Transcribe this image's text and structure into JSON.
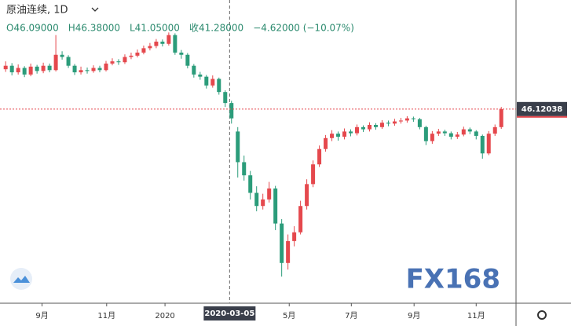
{
  "chart_data": {
    "type": "candlestick",
    "title": "原油连续, 1D",
    "ohlc_header": [
      "O46.09000",
      "H46.38000",
      "L41.05000",
      "收41.28000",
      "−4.62000 (−10.07%)"
    ],
    "open": [
      55.2,
      56,
      54.5,
      55.5,
      54,
      55.8,
      54.8,
      56,
      55,
      58.5,
      58,
      56,
      54.5,
      55,
      54.8,
      55.5,
      55,
      56.5,
      57,
      56.8,
      58,
      58.3,
      59,
      60,
      60.5,
      61.5,
      61,
      63,
      59,
      58.5,
      56,
      54,
      53.5,
      51.5,
      53,
      50,
      47.5,
      41,
      34,
      31,
      27,
      24,
      25.5,
      28,
      20,
      11,
      16,
      18,
      24,
      29,
      33.5,
      37,
      39.5,
      40.5,
      39.8,
      41,
      40.6,
      42,
      41.5,
      42.5,
      42,
      43,
      42.8,
      43.3,
      43.5,
      44,
      43.8,
      42,
      38.8,
      40.5,
      41,
      40.6,
      39.8,
      40.3,
      41.5,
      41,
      40,
      36,
      40.5,
      42
    ],
    "high": [
      57,
      56.6,
      56.3,
      55.9,
      56.5,
      56.2,
      56.7,
      56.5,
      63,
      59.3,
      58.4,
      56.4,
      55.8,
      55.6,
      56.1,
      56,
      57.1,
      57.7,
      57.5,
      58.6,
      59,
      59.7,
      60.6,
      61.2,
      62.1,
      62,
      63.6,
      63.4,
      59.6,
      58.9,
      56.4,
      54.6,
      53.9,
      53.8,
      53.3,
      50.4,
      48,
      42,
      35.5,
      32,
      28.5,
      26.8,
      29.5,
      28.6,
      21,
      17.5,
      19.4,
      25.2,
      30.1,
      34.4,
      37.8,
      40.2,
      41.3,
      41,
      41.7,
      41.5,
      42.6,
      42.4,
      43.1,
      42.9,
      43.6,
      43.5,
      43.9,
      44.1,
      44.5,
      44.4,
      44.1,
      42.3,
      41.1,
      41.6,
      41.4,
      41,
      40.9,
      42.1,
      41.9,
      41.3,
      40.3,
      41.1,
      42.6,
      46.6
    ],
    "low": [
      54.6,
      53.8,
      54,
      53.4,
      53.6,
      54.2,
      54.3,
      54.5,
      54.7,
      57.4,
      55.5,
      53.9,
      54,
      54.2,
      54.4,
      54.5,
      54.7,
      56.1,
      56.2,
      56.4,
      57.5,
      57.9,
      58.6,
      59.5,
      60,
      60.4,
      60.6,
      58.5,
      57.6,
      55.4,
      53.3,
      52.8,
      50.8,
      51,
      49.4,
      46.6,
      42.8,
      30.5,
      29.8,
      25.5,
      22.8,
      23.2,
      24.8,
      18.5,
      7.9,
      9.5,
      14.8,
      17.5,
      23.2,
      28.3,
      32.9,
      36.4,
      38.8,
      38.9,
      39.2,
      39.9,
      40.1,
      40.9,
      41,
      41.4,
      41.6,
      42.2,
      42.3,
      42.8,
      43,
      43.2,
      41.5,
      37.9,
      38.2,
      40,
      40,
      39.2,
      39.3,
      39.9,
      40.4,
      39.2,
      34.8,
      35.6,
      40,
      41.6
    ],
    "close": [
      56,
      54.5,
      55.5,
      54,
      55.8,
      54.8,
      56,
      55,
      58.5,
      58,
      56,
      54.5,
      55,
      54.8,
      55.5,
      55,
      56.5,
      57,
      56.8,
      58,
      58.3,
      59,
      60,
      60.5,
      61.5,
      61,
      63,
      59,
      58.5,
      56,
      54,
      53.5,
      51.5,
      53,
      50,
      47.5,
      44,
      34,
      31,
      27,
      24,
      25.5,
      28,
      20,
      11,
      16,
      18,
      24,
      29,
      33.5,
      37,
      39.5,
      40.5,
      39.8,
      41,
      40.6,
      42,
      41.5,
      42.5,
      42,
      43,
      42.8,
      43.3,
      43.5,
      44,
      43.8,
      42,
      38.8,
      40.5,
      41,
      40.6,
      39.8,
      40.3,
      41.5,
      41,
      40,
      36,
      40.5,
      42,
      46.1
    ],
    "up_color": "#e5484d",
    "down_color": "#2b9c7a",
    "ylim": [
      2,
      71
    ],
    "xlim": [
      -0.9,
      81.1
    ],
    "xticks": [
      {
        "value": 5.8,
        "label": "9月"
      },
      {
        "value": 16.1,
        "label": "11月"
      },
      {
        "value": 25.4,
        "label": "2020"
      },
      {
        "value": 45.2,
        "label": "5月"
      },
      {
        "value": 55.1,
        "label": "7月"
      },
      {
        "value": 65.1,
        "label": "9月"
      },
      {
        "value": 75,
        "label": "11月"
      }
    ],
    "crosshair": {
      "value": 35.7,
      "label": "2020-03-05"
    },
    "last_price": 46.12038,
    "watermark": "FX168"
  }
}
